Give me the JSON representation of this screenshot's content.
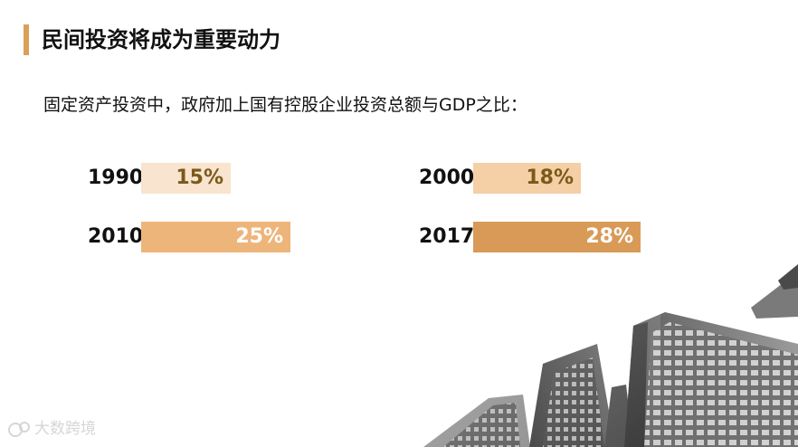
{
  "header": {
    "title": "民间投资将成为重要动力",
    "subtitle": "固定资产投资中，政府加上国有控股企业投资总额与GDP之比："
  },
  "colors": {
    "accent": "#d9a05a",
    "bar_1990": "#f8e4cf",
    "bar_2000": "#f5cfa5",
    "bar_2010": "#edb57a",
    "bar_2017": "#d99a57",
    "label_dark": "#7a5a1b",
    "label_light": "#ffffff"
  },
  "chart_data": {
    "type": "bar",
    "title": "固定资产投资中，政府加上国有控股企业投资总额与GDP之比：",
    "categories": [
      "1990",
      "2000",
      "2010",
      "2017"
    ],
    "values": [
      15,
      18,
      25,
      28
    ],
    "value_labels": [
      "15%",
      "18%",
      "25%",
      "28%"
    ],
    "unit": "%"
  },
  "watermark": {
    "text": "大数跨境"
  }
}
